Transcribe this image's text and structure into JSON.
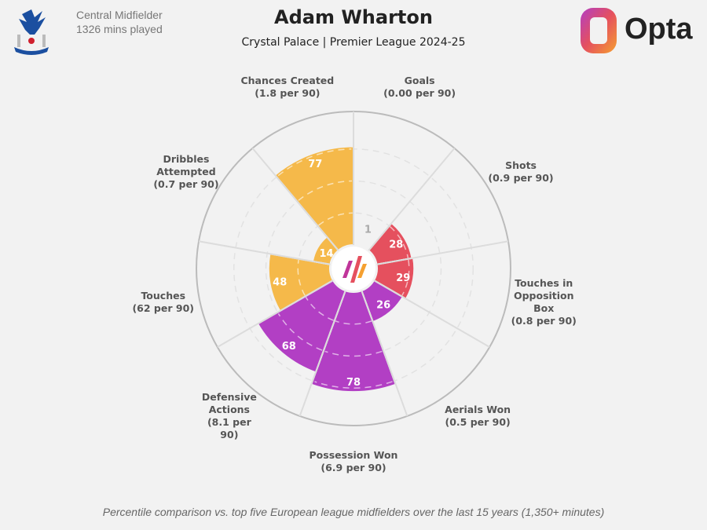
{
  "header": {
    "player": "Adam Wharton",
    "subtitle": "Crystal Palace | Premier League 2024-25",
    "position": "Central Midfielder",
    "minutes": "1326 mins played",
    "brand": "Opta"
  },
  "footer": "Percentile comparison vs. top five European league midfielders over the last 15 years (1,350+ minutes)",
  "chart_data": {
    "type": "polar-bar",
    "range": [
      0,
      100
    ],
    "categories": [
      {
        "name": "Goals",
        "per90": "(0.00 per 90)",
        "value": 1,
        "color": "#e5505e"
      },
      {
        "name": "Shots",
        "per90": "(0.9 per 90)",
        "value": 28,
        "color": "#e5505e"
      },
      {
        "name": "Touches in Opposition Box",
        "per90": "(0.8 per 90)",
        "value": 29,
        "color": "#e5505e"
      },
      {
        "name": "Aerials Won",
        "per90": "(0.5 per 90)",
        "value": 26,
        "color": "#b23fc4"
      },
      {
        "name": "Possession Won",
        "per90": "(6.9 per 90)",
        "value": 78,
        "color": "#b23fc4"
      },
      {
        "name": "Defensive Actions",
        "per90": "(8.1 per 90)",
        "value": 68,
        "color": "#b23fc4"
      },
      {
        "name": "Touches",
        "per90": "(62 per 90)",
        "value": 48,
        "color": "#f5b94a"
      },
      {
        "name": "Dribbles Attempted",
        "per90": "(0.7 per 90)",
        "value": 14,
        "color": "#f5b94a"
      },
      {
        "name": "Chances Created",
        "per90": "(1.8 per 90)",
        "value": 77,
        "color": "#f5b94a"
      }
    ]
  }
}
